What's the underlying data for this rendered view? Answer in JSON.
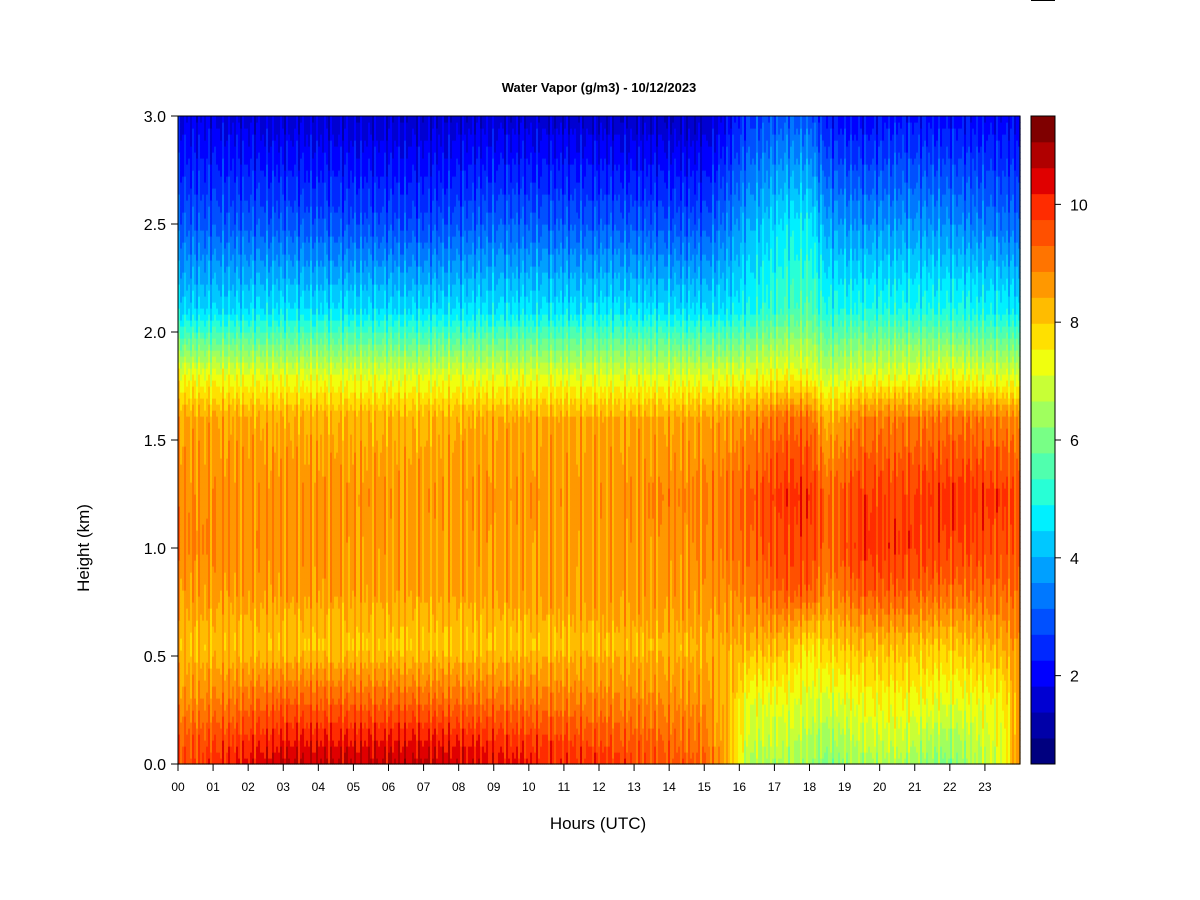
{
  "chart_data": {
    "type": "heatmap",
    "title": "Water Vapor (g/m3) - 10/12/2023",
    "xlabel": "Hours (UTC)",
    "ylabel": "Height (km)",
    "xlim": [
      0,
      24
    ],
    "ylim": [
      0,
      3.0
    ],
    "x_ticks": [
      "00",
      "01",
      "02",
      "03",
      "04",
      "05",
      "06",
      "07",
      "08",
      "09",
      "10",
      "11",
      "12",
      "13",
      "14",
      "15",
      "16",
      "17",
      "18",
      "19",
      "20",
      "21",
      "22",
      "23"
    ],
    "y_ticks": [
      "0.0",
      "0.5",
      "1.0",
      "1.5",
      "2.0",
      "2.5",
      "3.0"
    ],
    "colorbar": {
      "range": [
        0.5,
        11.5
      ],
      "ticks": [
        "2",
        "4",
        "6",
        "8",
        "10"
      ],
      "colors": [
        "#00007f",
        "#0000a8",
        "#0000d2",
        "#0000ff",
        "#0028ff",
        "#0050ff",
        "#0078ff",
        "#00a0ff",
        "#00c8ff",
        "#00f0ff",
        "#28ffd6",
        "#50ffae",
        "#78ff86",
        "#a0ff5e",
        "#c8ff36",
        "#f0ff0e",
        "#ffe000",
        "#ffbc00",
        "#ff9800",
        "#ff7400",
        "#ff5000",
        "#ff2c00",
        "#e00000",
        "#b00000",
        "#7f0000"
      ]
    },
    "x_knots": [
      0,
      3,
      7,
      9,
      12,
      15,
      15.7,
      16.3,
      17.3,
      18,
      18.5,
      19.5,
      20.5,
      22,
      23.5,
      24
    ],
    "y_knots": [
      0,
      0.1,
      0.3,
      0.55,
      0.8,
      1.0,
      1.25,
      1.6,
      1.8,
      2.1,
      2.5,
      3.0
    ],
    "values": [
      [
        9.5,
        10.7,
        10.7,
        10.3,
        9.9,
        9.3,
        8.3,
        6.6,
        6.6,
        6.4,
        6.1,
        6.5,
        6.6,
        6.1,
        7.2,
        9
      ],
      [
        9.4,
        10.2,
        10.3,
        10.0,
        9.6,
        9.1,
        8.2,
        6.8,
        6.8,
        6.6,
        6.4,
        6.8,
        6.9,
        6.4,
        7.2,
        8.8
      ],
      [
        8.7,
        9.3,
        9.2,
        9.1,
        8.9,
        8.7,
        8.3,
        7.2,
        7.3,
        7.1,
        7.0,
        7.4,
        7.5,
        7.2,
        7.5,
        8.6
      ],
      [
        8.2,
        8.1,
        8.0,
        8.1,
        8.2,
        8.3,
        8.4,
        8.3,
        8.2,
        7.7,
        8.0,
        8.2,
        8.2,
        8.0,
        8.4,
        8.8
      ],
      [
        8.6,
        8.6,
        8.5,
        8.5,
        8.6,
        8.7,
        8.8,
        9.0,
        9.4,
        9.4,
        8.8,
        9.4,
        9.4,
        9.2,
        9.2,
        9.2
      ],
      [
        8.9,
        8.7,
        8.5,
        8.6,
        8.6,
        8.8,
        9.0,
        9.3,
        9.7,
        9.7,
        9.2,
        9.9,
        9.8,
        9.7,
        9.6,
        9.4
      ],
      [
        8.8,
        8.7,
        8.6,
        8.7,
        8.7,
        8.9,
        9.1,
        9.4,
        9.9,
        9.9,
        9.2,
        9.8,
        9.7,
        9.9,
        9.8,
        9.5
      ],
      [
        8.5,
        8.4,
        8.3,
        8.4,
        8.4,
        8.5,
        8.6,
        8.8,
        9.2,
        9.2,
        8.3,
        9.0,
        9.0,
        9.1,
        9.0,
        8.8
      ],
      [
        7.3,
        7.2,
        7.1,
        7.2,
        7.1,
        7.1,
        7.2,
        7.3,
        7.4,
        7.3,
        6.8,
        7.2,
        7.2,
        7.3,
        7.1,
        7.0
      ],
      [
        4.4,
        4.6,
        4.5,
        4.6,
        4.6,
        4.5,
        4.6,
        4.9,
        5.4,
        5.6,
        5.0,
        5.0,
        5.0,
        5.0,
        4.8,
        4.6
      ],
      [
        3.0,
        3.0,
        2.8,
        3.1,
        3.0,
        2.9,
        3.4,
        4.0,
        4.6,
        4.7,
        3.8,
        3.6,
        3.7,
        3.6,
        3.3,
        3.2
      ],
      [
        1.8,
        1.6,
        1.5,
        1.6,
        1.5,
        1.4,
        2.0,
        2.6,
        3.0,
        3.0,
        2.2,
        2.0,
        2.2,
        2.1,
        2.0,
        1.9
      ]
    ]
  }
}
